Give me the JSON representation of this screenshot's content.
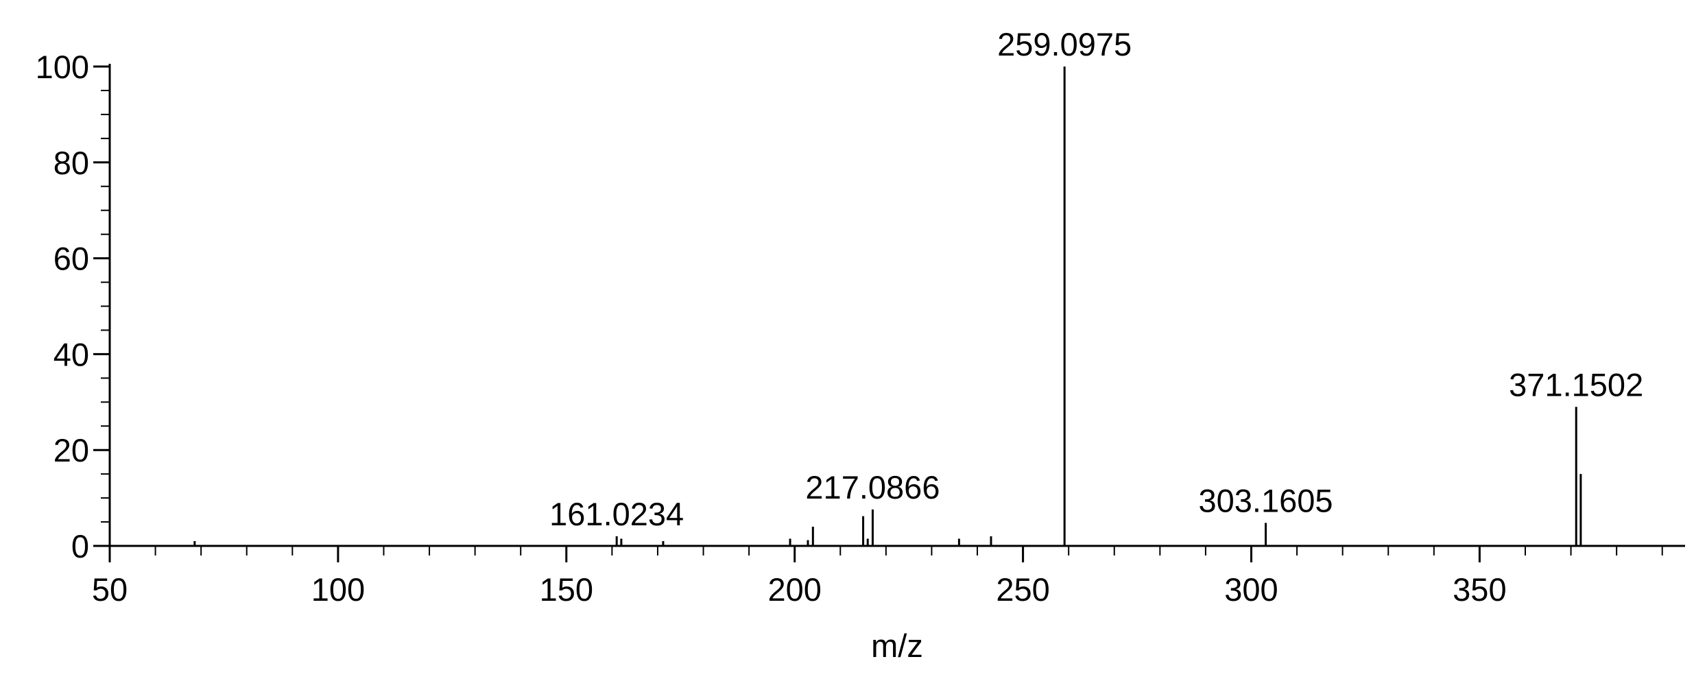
{
  "chart_data": {
    "type": "stick",
    "xlabel": "m/z",
    "x": [
      68.6,
      161.0234,
      162.03,
      171.2,
      199,
      202.9,
      204,
      215,
      216,
      217.0866,
      236,
      243,
      259.0975,
      303.1605,
      371.1502,
      372.15
    ],
    "values": [
      1,
      2,
      1.5,
      1,
      1.5,
      1.2,
      4,
      6.2,
      1.5,
      7.6,
      1.5,
      2,
      100,
      4.8,
      29,
      15
    ],
    "x_labels": [
      null,
      "161.0234",
      null,
      null,
      null,
      null,
      null,
      null,
      null,
      "217.0866",
      null,
      null,
      "259.0975",
      "303.1605",
      "371.1502",
      null
    ],
    "color": "#000000",
    "xlim": [
      50,
      395
    ],
    "ylim": [
      0,
      100
    ],
    "xticks": [
      50,
      100,
      150,
      200,
      250,
      300,
      350
    ],
    "yticks": [
      0,
      20,
      40,
      60,
      80,
      100
    ],
    "xminorticks": [
      60,
      70,
      80,
      90,
      110,
      120,
      130,
      140,
      160,
      170,
      180,
      190,
      210,
      220,
      230,
      240,
      260,
      270,
      280,
      290,
      310,
      320,
      330,
      340,
      360,
      370,
      380,
      390
    ],
    "yminorticks": [
      5,
      10,
      15,
      25,
      30,
      35,
      45,
      50,
      55,
      65,
      70,
      75,
      85,
      90,
      95
    ]
  }
}
